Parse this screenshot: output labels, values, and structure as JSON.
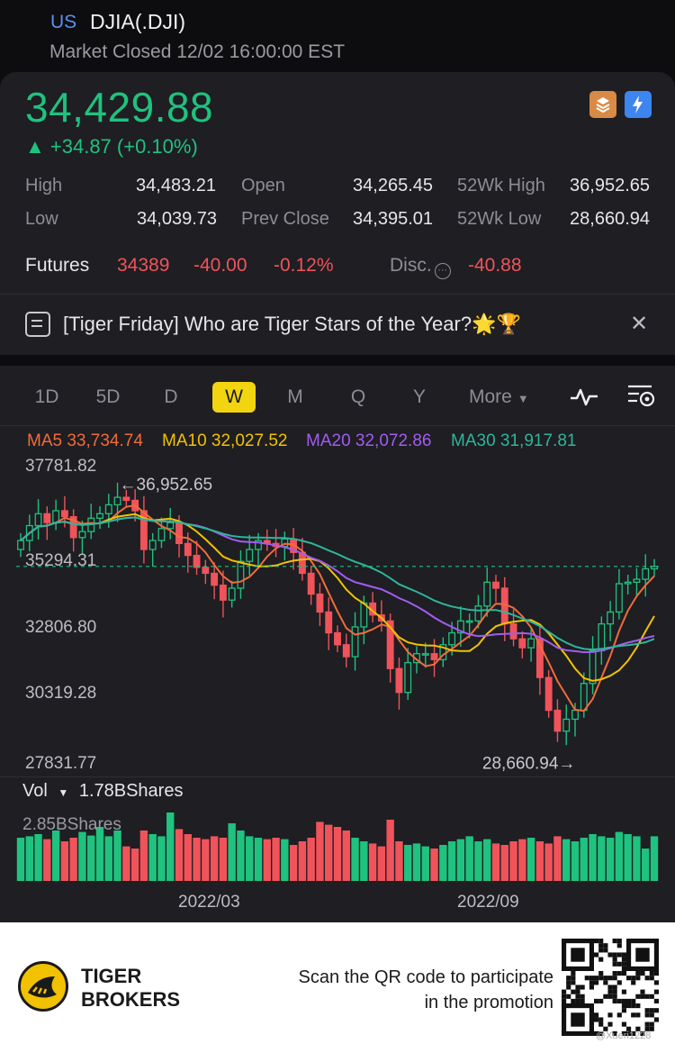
{
  "header": {
    "market": "US",
    "ticker": "DJIA(.DJI)",
    "status": "Market Closed 12/02 16:00:00 EST"
  },
  "quote": {
    "price": "34,429.88",
    "change": "▲ +34.87 (+0.10%)",
    "color_up": "#1fc27e",
    "color_down": "#f0535a",
    "stats": [
      {
        "label": "High",
        "value": "34,483.21"
      },
      {
        "label": "Open",
        "value": "34,265.45"
      },
      {
        "label": "52Wk High",
        "value": "36,952.65"
      },
      {
        "label": "Low",
        "value": "34,039.73"
      },
      {
        "label": "Prev Close",
        "value": "34,395.01"
      },
      {
        "label": "52Wk Low",
        "value": "28,660.94"
      }
    ],
    "futures": {
      "label": "Futures",
      "price": "34389",
      "change": "-40.00",
      "percent": "-0.12%",
      "disc_label": "Disc.",
      "disc_value": "-40.88"
    }
  },
  "banner": {
    "text": "[Tiger Friday] Who are Tiger Stars of the Year?🌟🏆",
    "icons": [
      "document-icon",
      "close-icon"
    ]
  },
  "tabs": {
    "items": [
      "1D",
      "5D",
      "D",
      "W",
      "M",
      "Q",
      "Y"
    ],
    "active": "W",
    "more": "More",
    "tools": [
      "indicator-icon",
      "chart-settings-icon"
    ]
  },
  "ma": [
    {
      "label": "MA5",
      "value": "33,734.74",
      "color": "#f26b3a"
    },
    {
      "label": "MA10",
      "value": "32,027.52",
      "color": "#f2c200"
    },
    {
      "label": "MA20",
      "value": "32,072.86",
      "color": "#a35cf0"
    },
    {
      "label": "MA30",
      "value": "31,917.81",
      "color": "#2fb59a"
    }
  ],
  "chart_data": {
    "type": "candlestick",
    "interval": "W",
    "y_ticks": [
      "37781.82",
      "35294.31",
      "32806.80",
      "30319.28",
      "27831.77"
    ],
    "ylim": [
      27831.77,
      37781.82
    ],
    "x_ticks": [
      "2022/03",
      "2022/09"
    ],
    "high_annotation": "36,952.65",
    "low_annotation": "28,660.94",
    "last_close": 34429.88,
    "closes": [
      35300,
      35800,
      36200,
      35900,
      36300,
      36100,
      35400,
      35600,
      36050,
      36200,
      36500,
      36750,
      36650,
      36300,
      35000,
      35300,
      35700,
      35900,
      35200,
      34800,
      34400,
      34200,
      33800,
      33300,
      33700,
      34600,
      35000,
      35300,
      35200,
      35100,
      35350,
      34900,
      34200,
      33500,
      32900,
      32200,
      31800,
      31400,
      32400,
      33200,
      32800,
      32600,
      31000,
      30200,
      31200,
      31500,
      31500,
      31300,
      31800,
      32200,
      32600,
      32600,
      33100,
      33900,
      33700,
      32500,
      32000,
      31700,
      32000,
      30700,
      29600,
      28900,
      29300,
      29600,
      30500,
      31600,
      32500,
      32900,
      33850,
      33900,
      34000,
      34350,
      34429.88
    ],
    "volume_ticks": [
      "2.85BShares"
    ],
    "volume_label": "Vol",
    "volume_value": "1.78BShares"
  },
  "promo": {
    "brand_line1": "TIGER",
    "brand_line2": "BROKERS",
    "text": "Scan the QR code to participate in the promotion",
    "watermark": "@Xueri1228"
  }
}
